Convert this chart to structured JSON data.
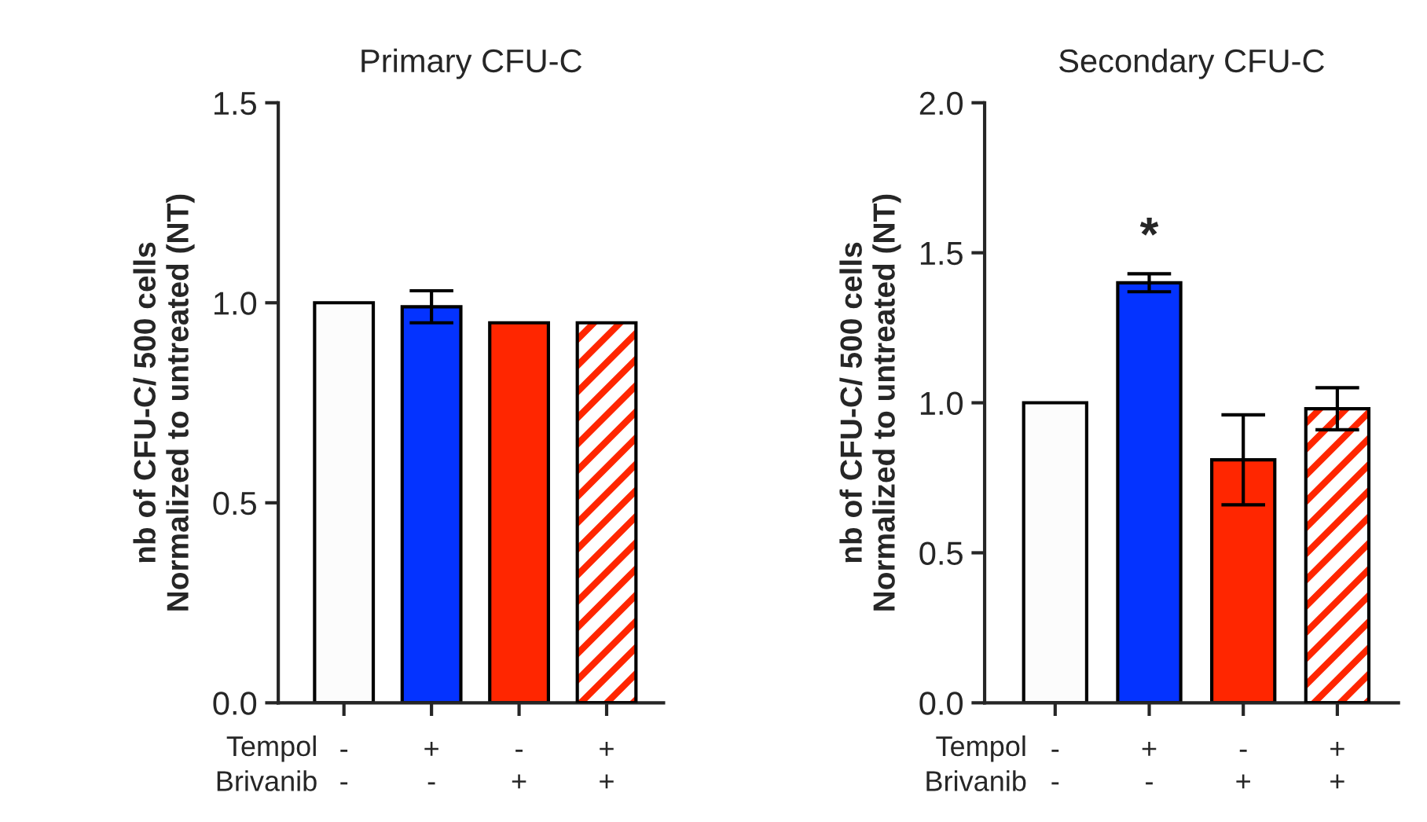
{
  "chart_data": [
    {
      "type": "bar",
      "title": "Primary CFU-C",
      "ylabel": "nb of CFU-C/ 500 cells\nNormalized to untreated (NT)",
      "categories": [
        "-\n-",
        "+\n-",
        "-\n+",
        "+\n+"
      ],
      "values": [
        1.0,
        0.99,
        0.95,
        0.95
      ],
      "errors": [
        null,
        0.04,
        null,
        null
      ],
      "colors": [
        "#fcfcfc",
        "#0433ff",
        "#ff2600",
        "#ff2600"
      ],
      "ylim": [
        0,
        1.5
      ],
      "yticks": [
        {
          "value": 0,
          "label": "0.0"
        },
        {
          "value": 0.5,
          "label": "0.5"
        },
        {
          "value": 1.0,
          "label": "1.0"
        },
        {
          "value": 1.5,
          "label": "1.5"
        }
      ],
      "annotations": [
        "Tempol",
        "Brivanib"
      ],
      "grid": false,
      "legend": false
    },
    {
      "type": "bar",
      "title": "Secondary CFU-C",
      "ylabel": "nb of CFU-C/ 500 cells\nNormalized to untreated (NT)",
      "categories": [
        "-\n-",
        "+\n-",
        "-\n+",
        "+\n+"
      ],
      "values": [
        1.0,
        1.4,
        0.81,
        0.98
      ],
      "errors": [
        null,
        0.03,
        0.15,
        0.07
      ],
      "colors": [
        "#fcfcfc",
        "#0433ff",
        "#ff2600",
        "#ff2600"
      ],
      "ylim": [
        0,
        2.0
      ],
      "yticks": [
        {
          "value": 0,
          "label": "0.0"
        },
        {
          "value": 0.5,
          "label": "0.5"
        },
        {
          "value": 1.0,
          "label": "1.0"
        },
        {
          "value": 1.5,
          "label": "1.5"
        },
        {
          "value": 2.0,
          "label": "2.0"
        }
      ],
      "annotations": [
        "Tempol",
        "Brivanib",
        "*"
      ],
      "grid": false,
      "legend": false
    }
  ]
}
